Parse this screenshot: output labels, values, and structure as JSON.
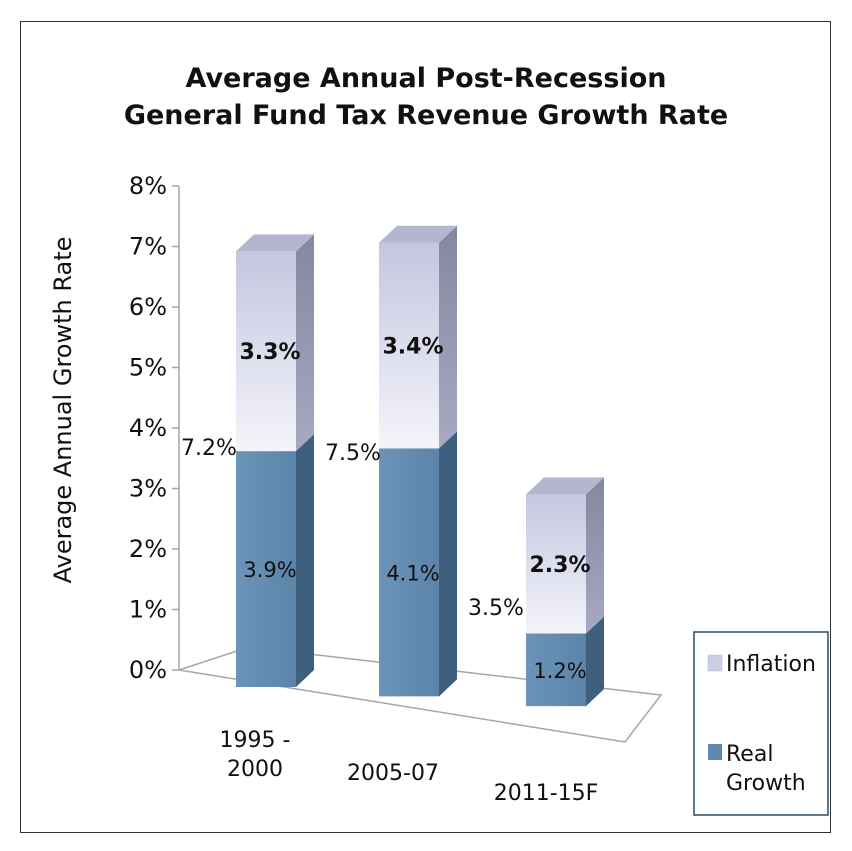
{
  "chart_data": {
    "type": "bar",
    "stacked": true,
    "three_d": true,
    "title": "Average Annual Post-Recession\nGeneral Fund Tax Revenue Growth Rate",
    "ylabel": "Average Annual Growth Rate",
    "xlabel": "",
    "ylim": [
      0,
      8
    ],
    "yticks": [
      "0%",
      "1%",
      "2%",
      "3%",
      "4%",
      "5%",
      "6%",
      "7%",
      "8%"
    ],
    "categories": [
      "1995 -\n2000",
      "2005-07",
      "2011-15F"
    ],
    "series": [
      {
        "name": "Real Growth",
        "color": "#6089ad",
        "values": [
          3.9,
          4.1,
          1.2
        ],
        "labels": [
          "3.9%",
          "4.1%",
          "1.2%"
        ]
      },
      {
        "name": "Inflation",
        "color": "#d9dcec",
        "values": [
          3.3,
          3.4,
          2.3
        ],
        "labels": [
          "3.3%",
          "3.4%",
          "2.3%"
        ]
      }
    ],
    "totals": [
      7.2,
      7.5,
      3.5
    ],
    "total_labels": [
      "7.2%",
      "7.5%",
      "3.5%"
    ],
    "legend": {
      "placement": "bottom-right",
      "order": [
        "Inflation",
        "Real Growth"
      ]
    }
  }
}
